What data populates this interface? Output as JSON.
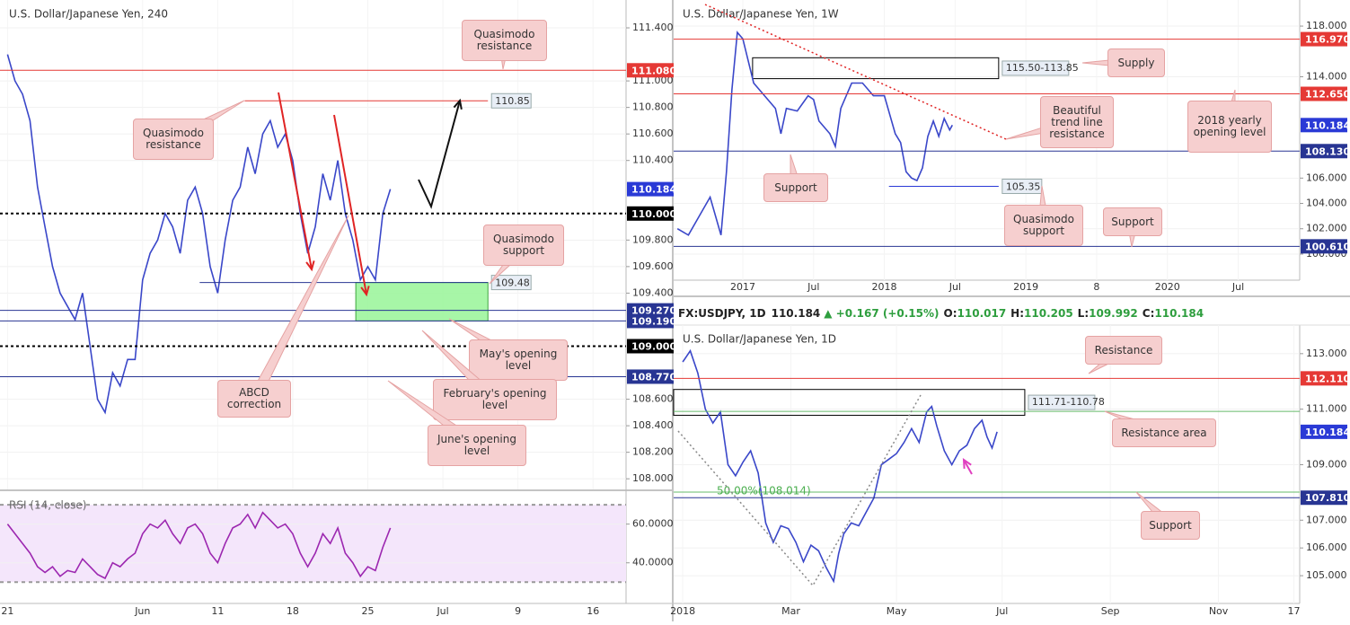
{
  "chart_data": [
    {
      "type": "line",
      "title": "U.S. Dollar/Japanese Yen, 240",
      "color": "#3a47c9",
      "x": [
        0,
        0.5,
        1,
        1.5,
        2,
        2.5,
        3,
        3.5,
        4,
        4.5,
        5,
        5.5,
        6,
        6.5,
        7,
        7.5,
        8,
        8.5,
        9,
        9.5,
        10,
        10.5,
        11,
        11.5,
        12,
        12.5,
        13,
        13.5,
        14,
        14.5,
        15,
        15.5,
        16,
        16.5,
        17,
        17.5,
        18,
        18.5,
        19,
        19.5,
        20,
        20.5,
        21,
        21.5,
        22,
        22.5,
        23,
        23.5,
        24,
        24.5,
        25,
        25.5
      ],
      "values": [
        111.2,
        111.0,
        110.9,
        110.7,
        110.2,
        109.9,
        109.6,
        109.4,
        109.3,
        109.2,
        109.4,
        109.0,
        108.6,
        108.5,
        108.8,
        108.7,
        108.9,
        108.9,
        109.5,
        109.7,
        109.8,
        110.0,
        109.9,
        109.7,
        110.1,
        110.2,
        110.0,
        109.6,
        109.4,
        109.8,
        110.1,
        110.2,
        110.5,
        110.3,
        110.6,
        110.7,
        110.5,
        110.6,
        110.4,
        110.0,
        109.7,
        109.9,
        110.3,
        110.1,
        110.4,
        110.0,
        109.8,
        109.5,
        109.6,
        109.5,
        110.0,
        110.184
      ],
      "xlim": [
        -0.5,
        41.2
      ],
      "xticks": [
        {
          "value": 0,
          "label": "21"
        },
        {
          "value": 9,
          "label": "Jun"
        },
        {
          "value": 14,
          "label": "11"
        },
        {
          "value": 19,
          "label": "18"
        },
        {
          "value": 24,
          "label": "25"
        },
        {
          "value": 29,
          "label": "Jul"
        },
        {
          "value": 34,
          "label": "9"
        },
        {
          "value": 39,
          "label": "16"
        }
      ],
      "ylim": [
        107.92,
        111.61
      ],
      "yticks": [
        {
          "value": 111.4,
          "label": "111.400"
        },
        {
          "value": 111.0,
          "label": "111.000"
        },
        {
          "value": 110.8,
          "label": "110.800"
        },
        {
          "value": 110.6,
          "label": "110.600"
        },
        {
          "value": 110.4,
          "label": "110.400"
        },
        {
          "value": 109.8,
          "label": "109.800"
        },
        {
          "value": 109.6,
          "label": "109.600"
        },
        {
          "value": 109.4,
          "label": "109.400"
        },
        {
          "value": 108.6,
          "label": "108.600"
        },
        {
          "value": 108.4,
          "label": "108.400"
        },
        {
          "value": 108.2,
          "label": "108.200"
        },
        {
          "value": 108.0,
          "label": "108.000"
        }
      ],
      "levels": [
        {
          "value": 111.08,
          "label": "111.080",
          "color": "#e53935",
          "tag": "axis"
        },
        {
          "value": 110.85,
          "from": 15.8,
          "to": 32,
          "color": "#e53935",
          "tag": "box"
        },
        {
          "value": 110.0,
          "label": "110.000",
          "color": "#000000",
          "tag": "axis",
          "style": "dashed"
        },
        {
          "value": 109.48,
          "from": 12.8,
          "to": 32,
          "color": "#283593",
          "tag": "box"
        },
        {
          "value": 109.27,
          "label": "109.270",
          "color": "#283593",
          "tag": "axis"
        },
        {
          "value": 109.19,
          "label": "109.190",
          "color": "#283593",
          "tag": "axis"
        },
        {
          "value": 109.0,
          "label": "109.000",
          "color": "#000000",
          "tag": "axis",
          "style": "dashed"
        },
        {
          "value": 108.77,
          "label": "108.770",
          "color": "#283593",
          "tag": "axis"
        },
        {
          "value": 110.184,
          "color": "#2a3ad6",
          "tag": "price"
        }
      ],
      "zones": [
        {
          "high": 109.48,
          "low": 109.19,
          "from": 23.2,
          "to": 32,
          "fill": "#9df59d",
          "stroke": "#3fa63f"
        }
      ],
      "callouts": [
        "Quasimodo resistance",
        "Quasimodo resistance",
        "Quasimodo support",
        "May's opening level",
        "February's opening level",
        "June's opening level",
        "ABCD correction"
      ]
    },
    {
      "type": "line",
      "title": "RSI (14, close)",
      "color": "#9c27b0",
      "values": [
        60,
        55,
        50,
        45,
        38,
        35,
        38,
        33,
        36,
        35,
        42,
        38,
        34,
        32,
        40,
        38,
        42,
        45,
        55,
        60,
        58,
        62,
        55,
        50,
        58,
        60,
        55,
        45,
        40,
        50,
        58,
        60,
        65,
        58,
        66,
        62,
        58,
        60,
        55,
        45,
        38,
        45,
        55,
        50,
        58,
        45,
        40,
        33,
        38,
        36,
        48,
        58
      ],
      "ylim": [
        19,
        77
      ],
      "yticks": [
        {
          "value": 60,
          "label": "60.0000"
        },
        {
          "value": 40,
          "label": "40.0000"
        }
      ],
      "levels": [
        {
          "value": 70,
          "color": "#999999",
          "tag": "none",
          "style": "dashed"
        },
        {
          "value": 30,
          "color": "#999999",
          "tag": "none",
          "style": "dashed"
        }
      ]
    },
    {
      "type": "line",
      "title": "U.S. Dollar/Japanese Yen, 1W",
      "color": "#3a47c9",
      "x": [
        -24,
        -20,
        -16,
        -12,
        -8,
        -6,
        -4,
        -2,
        0,
        4,
        8,
        12,
        14,
        16,
        20,
        24,
        26,
        28,
        32,
        34,
        36,
        40,
        44,
        48,
        52,
        56,
        58,
        60,
        62,
        64,
        66,
        68,
        70,
        72,
        74,
        76,
        77
      ],
      "values": [
        102.0,
        101.5,
        103.0,
        104.5,
        101.5,
        106.5,
        113.0,
        117.5,
        117.0,
        113.5,
        112.5,
        111.5,
        109.5,
        111.5,
        111.3,
        112.5,
        112.2,
        110.5,
        109.5,
        108.5,
        111.5,
        113.5,
        113.5,
        112.5,
        112.5,
        109.5,
        108.8,
        106.5,
        106.0,
        105.8,
        106.8,
        109.3,
        110.5,
        109.3,
        110.7,
        109.8,
        110.184
      ],
      "xlim": [
        -25.4,
        204.6
      ],
      "xticks": [
        {
          "value": 0,
          "label": "2017"
        },
        {
          "value": 26,
          "label": "Jul"
        },
        {
          "value": 52,
          "label": "2018"
        },
        {
          "value": 78,
          "label": "Jul"
        },
        {
          "value": 104,
          "label": "2019"
        },
        {
          "value": 130,
          "label": "8"
        },
        {
          "value": 156,
          "label": "2020"
        },
        {
          "value": 182,
          "label": "Jul"
        }
      ],
      "ylim": [
        97.94,
        120.06
      ],
      "yticks": [
        {
          "value": 118,
          "label": "118.000"
        },
        {
          "value": 114,
          "label": "114.000"
        },
        {
          "value": 106,
          "label": "106.000"
        },
        {
          "value": 104,
          "label": "104.000"
        },
        {
          "value": 102,
          "label": "102.000"
        },
        {
          "value": 100,
          "label": "100.000"
        }
      ],
      "levels": [
        {
          "value": 116.97,
          "label": "116.970",
          "color": "#e53935",
          "tag": "axis"
        },
        {
          "value": 112.65,
          "label": "112.650",
          "color": "#e53935",
          "tag": "axis"
        },
        {
          "value": 110.184,
          "color": "#2a3ad6",
          "tag": "price"
        },
        {
          "value": 108.13,
          "label": "108.130",
          "color": "#283593",
          "tag": "axis"
        },
        {
          "value": 105.35,
          "from": 53.7,
          "to": 94,
          "color": "#2a3ad6",
          "tag": "box"
        },
        {
          "value": 100.61,
          "label": "100.610",
          "color": "#283593",
          "tag": "axis"
        }
      ],
      "zones": [
        {
          "high": 115.5,
          "low": 113.85,
          "label": "115.50-113.85",
          "from": 3.6,
          "to": 94,
          "fill": "none",
          "stroke": "#000000"
        }
      ],
      "callouts": [
        "Supply",
        "Beautiful trend line resistance",
        "2018 yearly opening level",
        "Support",
        "Quasimodo support",
        "Support"
      ]
    },
    {
      "type": "line",
      "title": "U.S. Dollar/Japanese Yen, 1D",
      "color": "#3a47c9",
      "header": {
        "symbol": "FX:USDJPY, 1D",
        "last": "110.184",
        "change": "▲ +0.167 (+0.15%)",
        "ohlc": [
          [
            "O:",
            "110.017"
          ],
          [
            "H:",
            "110.205"
          ],
          [
            "L:",
            "109.992"
          ],
          [
            "C:",
            "110.184"
          ]
        ]
      },
      "x": [
        0,
        3,
        6,
        9,
        12,
        15,
        18,
        21,
        24,
        27,
        30,
        33,
        36,
        39,
        42,
        45,
        48,
        51,
        54,
        57,
        60,
        62,
        64,
        67,
        70,
        73,
        76,
        79,
        82,
        85,
        88,
        91,
        94,
        97,
        99,
        101,
        104,
        107,
        110,
        113,
        116,
        119,
        121,
        123,
        125
      ],
      "values": [
        112.7,
        113.1,
        112.3,
        111.0,
        110.5,
        110.9,
        109.0,
        108.6,
        109.1,
        109.5,
        108.7,
        106.9,
        106.2,
        106.8,
        106.7,
        106.2,
        105.5,
        106.1,
        105.9,
        105.3,
        104.8,
        105.8,
        106.5,
        106.9,
        106.8,
        107.3,
        107.8,
        109.0,
        109.2,
        109.4,
        109.8,
        110.3,
        109.8,
        110.9,
        111.1,
        110.4,
        109.5,
        109.0,
        109.5,
        109.7,
        110.3,
        110.6,
        110.0,
        109.6,
        110.184
      ],
      "xlim": [
        -3.6,
        245.3
      ],
      "xticks": [
        {
          "value": 0,
          "label": "2018"
        },
        {
          "value": 43,
          "label": "Mar"
        },
        {
          "value": 85,
          "label": "May"
        },
        {
          "value": 127,
          "label": "Jul"
        },
        {
          "value": 170,
          "label": "Sep"
        },
        {
          "value": 213,
          "label": "Nov"
        },
        {
          "value": 243,
          "label": "17"
        }
      ],
      "ylim": [
        104.0,
        114.03
      ],
      "yticks": [
        {
          "value": 113,
          "label": "113.000"
        },
        {
          "value": 111,
          "label": "111.000"
        },
        {
          "value": 109,
          "label": "109.000"
        },
        {
          "value": 107,
          "label": "107.000"
        },
        {
          "value": 106,
          "label": "106.000"
        },
        {
          "value": 105,
          "label": "105.000"
        }
      ],
      "levels": [
        {
          "value": 112.11,
          "label": "112.110",
          "color": "#e53935",
          "tag": "axis"
        },
        {
          "value": 110.92,
          "color": "#66bb6a",
          "tag": "none"
        },
        {
          "value": 110.184,
          "color": "#2a3ad6",
          "tag": "price"
        },
        {
          "value": 108.014,
          "label": "50.00%(108.014)",
          "color": "#66bb6a",
          "tag": "inline"
        },
        {
          "value": 107.81,
          "label": "107.810",
          "color": "#283593",
          "tag": "axis"
        }
      ],
      "zones": [
        {
          "high": 111.71,
          "low": 110.78,
          "label": "111.71-110.78",
          "from": -3.6,
          "to": 136,
          "fill": "none",
          "stroke": "#000000"
        }
      ],
      "callouts": [
        "Resistance",
        "Resistance area",
        "Support"
      ]
    }
  ]
}
